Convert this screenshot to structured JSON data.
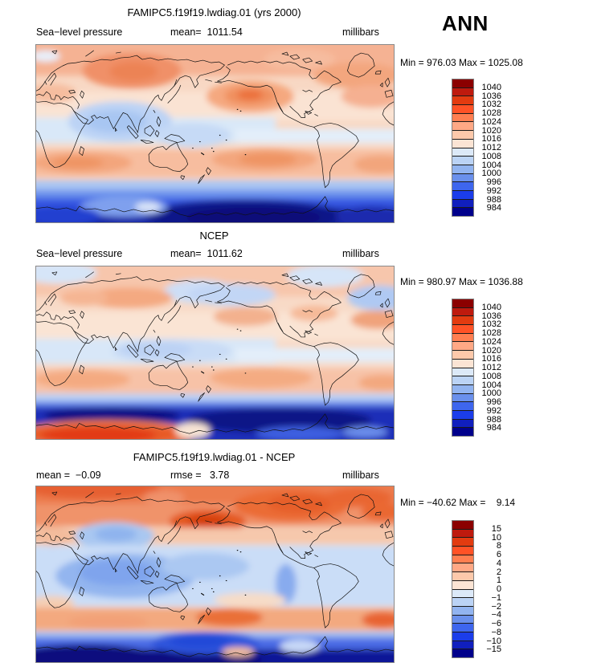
{
  "season_label": "ANN",
  "palette_top_to_bottom": [
    "#8B0000",
    "#BE1A0E",
    "#E23B10",
    "#FF5226",
    "#FF7E50",
    "#FFA885",
    "#FDC9AB",
    "#FBE4D4",
    "#DCE9F8",
    "#BBD3F5",
    "#92B4F0",
    "#6A90EC",
    "#3E66EE",
    "#1B3DEA",
    "#101FBE",
    "#00008B"
  ],
  "panels": [
    {
      "id": "model",
      "title": "FAMIPC5.f19f19.lwdiag.01 (yrs 2000)",
      "subtitle_left": "Sea−level pressure",
      "subtitle_mid": "mean=  1011.54",
      "subtitle_right": "millibars",
      "minmax": "Min = 976.03 Max = 1025.08",
      "colorbar_labels": [
        "1040",
        "1036",
        "1032",
        "1028",
        "1024",
        "1020",
        "1016",
        "1012",
        "1008",
        "1004",
        "1000",
        "996",
        "992",
        "988",
        "984"
      ]
    },
    {
      "id": "ncep",
      "title": "NCEP",
      "subtitle_left": "Sea−level pressure",
      "subtitle_mid": "mean=  1011.62",
      "subtitle_right": "millibars",
      "minmax": "Min = 980.97 Max = 1036.88",
      "colorbar_labels": [
        "1040",
        "1036",
        "1032",
        "1028",
        "1024",
        "1020",
        "1016",
        "1012",
        "1008",
        "1004",
        "1000",
        "996",
        "992",
        "988",
        "984"
      ]
    },
    {
      "id": "diff",
      "title": "FAMIPC5.f19f19.lwdiag.01 - NCEP",
      "subtitle_left": "mean =  −0.09",
      "subtitle_mid": "rmse =   3.78",
      "subtitle_right": "millibars",
      "minmax": "Min = −40.62 Max =    9.14",
      "colorbar_labels": [
        "15",
        "10",
        "8",
        "6",
        "4",
        "2",
        "1",
        "0",
        "−1",
        "−2",
        "−4",
        "−6",
        "−8",
        "−10",
        "−15"
      ]
    }
  ],
  "chart_data": [
    {
      "type": "heatmap",
      "subtype": "filled-contour world map",
      "title": "FAMIPC5.f19f19.lwdiag.01 (yrs 2000)",
      "variable": "Sea-level pressure",
      "units": "millibars",
      "season": "ANN",
      "mean": 1011.54,
      "min": 976.03,
      "max": 1025.08,
      "contour_levels": [
        984,
        988,
        992,
        996,
        1000,
        1004,
        1008,
        1012,
        1016,
        1020,
        1024,
        1028,
        1032,
        1036,
        1040
      ],
      "projection": "cylindrical equidistant, lon 0-360E, lat 90N-90S",
      "legend_position": "right",
      "pattern_notes": "salmon/orange Arctic and Siberian high, orange North Pacific high, light-blue equatorial trough over Indian Ocean and West Pacific, orange southern subtropical highs near 30S, deep navy circumpolar low over Southern Ocean and Antarctica"
    },
    {
      "type": "heatmap",
      "subtype": "filled-contour world map",
      "title": "NCEP",
      "variable": "Sea-level pressure",
      "units": "millibars",
      "season": "ANN",
      "mean": 1011.62,
      "min": 980.97,
      "max": 1036.88,
      "contour_levels": [
        984,
        988,
        992,
        996,
        1000,
        1004,
        1008,
        1012,
        1016,
        1020,
        1024,
        1028,
        1032,
        1036,
        1040
      ],
      "projection": "cylindrical equidistant, lon 0-360E, lat 90N-90S",
      "legend_position": "right",
      "pattern_notes": "similar to model but with light-blue Aleutian and Icelandic lows, deep navy circumpolar trough, and bright red high-pressure artifact over East Antarctica (bottom-left)"
    },
    {
      "type": "heatmap",
      "subtype": "filled-contour difference map",
      "title": "FAMIPC5.f19f19.lwdiag.01 - NCEP",
      "variable": "Sea-level pressure difference",
      "units": "millibars",
      "season": "ANN",
      "mean": -0.09,
      "rmse": 3.78,
      "min": -40.62,
      "max": 9.14,
      "contour_levels": [
        -15,
        -10,
        -8,
        -6,
        -4,
        -2,
        -1,
        0,
        1,
        2,
        4,
        6,
        8,
        10,
        15
      ],
      "projection": "cylindrical equidistant, lon 0-360E, lat 90N-90S",
      "legend_position": "right",
      "pattern_notes": "positive (orange/red) bias across the Arctic and northern high latitudes, negative (blue) band through the tropics strongest over the Indian Ocean, positive band near 50S, strong negative (navy) bias over Antarctica"
    }
  ]
}
